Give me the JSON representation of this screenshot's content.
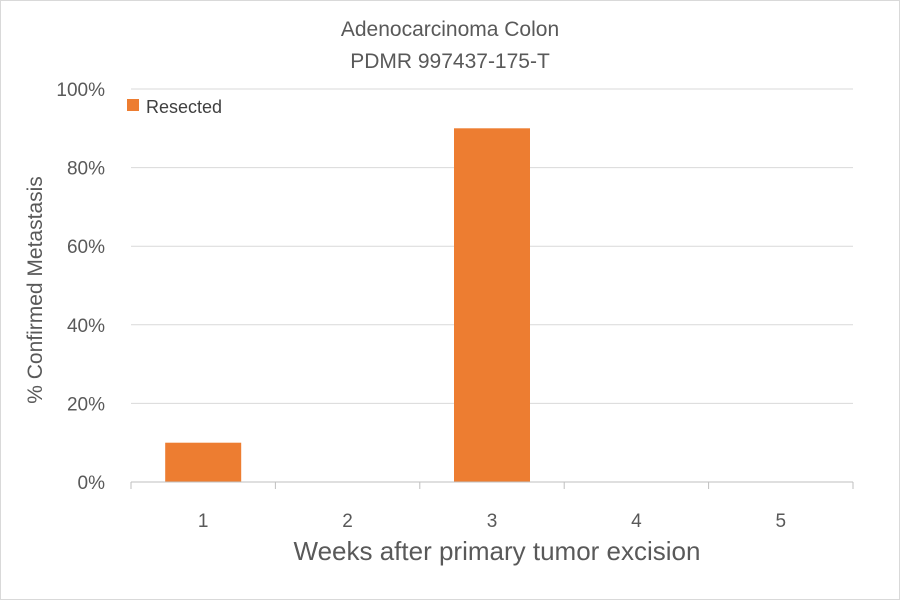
{
  "chart_data": {
    "type": "bar",
    "title": "Adenocarcinoma Colon",
    "subtitle": "PDMR 997437-175-T",
    "xlabel": "Weeks after primary tumor excision",
    "ylabel": "% Confirmed Metastasis",
    "categories": [
      "1",
      "2",
      "3",
      "4",
      "5"
    ],
    "series": [
      {
        "name": "Resected",
        "color": "#ED7D31",
        "values": [
          10,
          0,
          90,
          0,
          0
        ]
      }
    ],
    "ylim": [
      0,
      100
    ],
    "y_ticks": [
      0,
      20,
      40,
      60,
      80,
      100
    ],
    "y_tick_labels": [
      "0%",
      "20%",
      "40%",
      "60%",
      "80%",
      "100%"
    ],
    "grid": true,
    "legend_position": "top-left"
  }
}
